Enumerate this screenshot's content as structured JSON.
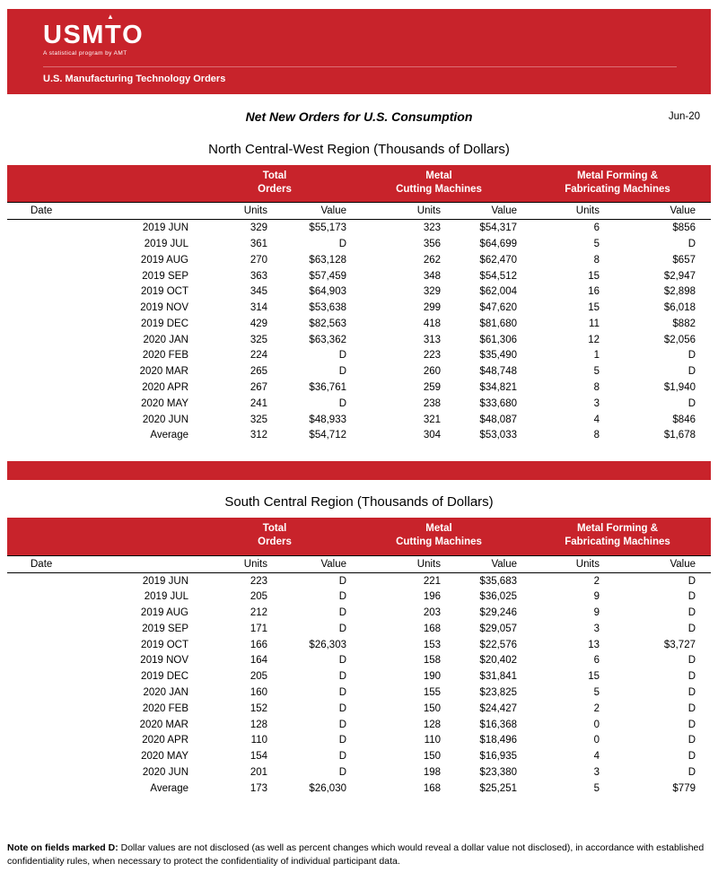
{
  "colors": {
    "brand_red": "#c8232b"
  },
  "brand": {
    "logo": "USM",
    "logo_t": "T",
    "logo_o": "O",
    "logo_arrow": "▲",
    "tagline": "A statistical program by AMT",
    "subtitle": "U.S. Manufacturing Technology Orders"
  },
  "header": {
    "title": "Net New Orders for U.S. Consumption",
    "period": "Jun-20"
  },
  "columns": {
    "date": "Date",
    "units": "Units",
    "value": "Value",
    "groups": [
      {
        "line1": "Total",
        "line2": "Orders"
      },
      {
        "line1": "Metal",
        "line2": "Cutting Machines"
      },
      {
        "line1": "Metal Forming &",
        "line2": "Fabricating Machines"
      }
    ]
  },
  "tables": [
    {
      "title": "North Central-West Region (Thousands of Dollars)",
      "rows": [
        [
          "2019 JUN",
          "329",
          "$55,173",
          "323",
          "$54,317",
          "6",
          "$856"
        ],
        [
          "2019 JUL",
          "361",
          "D",
          "356",
          "$64,699",
          "5",
          "D"
        ],
        [
          "2019 AUG",
          "270",
          "$63,128",
          "262",
          "$62,470",
          "8",
          "$657"
        ],
        [
          "2019 SEP",
          "363",
          "$57,459",
          "348",
          "$54,512",
          "15",
          "$2,947"
        ],
        [
          "2019 OCT",
          "345",
          "$64,903",
          "329",
          "$62,004",
          "16",
          "$2,898"
        ],
        [
          "2019 NOV",
          "314",
          "$53,638",
          "299",
          "$47,620",
          "15",
          "$6,018"
        ],
        [
          "2019 DEC",
          "429",
          "$82,563",
          "418",
          "$81,680",
          "11",
          "$882"
        ],
        [
          "2020 JAN",
          "325",
          "$63,362",
          "313",
          "$61,306",
          "12",
          "$2,056"
        ],
        [
          "2020 FEB",
          "224",
          "D",
          "223",
          "$35,490",
          "1",
          "D"
        ],
        [
          "2020 MAR",
          "265",
          "D",
          "260",
          "$48,748",
          "5",
          "D"
        ],
        [
          "2020 APR",
          "267",
          "$36,761",
          "259",
          "$34,821",
          "8",
          "$1,940"
        ],
        [
          "2020 MAY",
          "241",
          "D",
          "238",
          "$33,680",
          "3",
          "D"
        ],
        [
          "2020 JUN",
          "325",
          "$48,933",
          "321",
          "$48,087",
          "4",
          "$846"
        ],
        [
          "Average",
          "312",
          "$54,712",
          "304",
          "$53,033",
          "8",
          "$1,678"
        ]
      ]
    },
    {
      "title": "South Central Region (Thousands of Dollars)",
      "rows": [
        [
          "2019 JUN",
          "223",
          "D",
          "221",
          "$35,683",
          "2",
          "D"
        ],
        [
          "2019 JUL",
          "205",
          "D",
          "196",
          "$36,025",
          "9",
          "D"
        ],
        [
          "2019 AUG",
          "212",
          "D",
          "203",
          "$29,246",
          "9",
          "D"
        ],
        [
          "2019 SEP",
          "171",
          "D",
          "168",
          "$29,057",
          "3",
          "D"
        ],
        [
          "2019 OCT",
          "166",
          "$26,303",
          "153",
          "$22,576",
          "13",
          "$3,727"
        ],
        [
          "2019 NOV",
          "164",
          "D",
          "158",
          "$20,402",
          "6",
          "D"
        ],
        [
          "2019 DEC",
          "205",
          "D",
          "190",
          "$31,841",
          "15",
          "D"
        ],
        [
          "2020 JAN",
          "160",
          "D",
          "155",
          "$23,825",
          "5",
          "D"
        ],
        [
          "2020 FEB",
          "152",
          "D",
          "150",
          "$24,427",
          "2",
          "D"
        ],
        [
          "2020 MAR",
          "128",
          "D",
          "128",
          "$16,368",
          "0",
          "D"
        ],
        [
          "2020 APR",
          "110",
          "D",
          "110",
          "$18,496",
          "0",
          "D"
        ],
        [
          "2020 MAY",
          "154",
          "D",
          "150",
          "$16,935",
          "4",
          "D"
        ],
        [
          "2020 JUN",
          "201",
          "D",
          "198",
          "$23,380",
          "3",
          "D"
        ],
        [
          "Average",
          "173",
          "$26,030",
          "168",
          "$25,251",
          "5",
          "$779"
        ]
      ]
    }
  ],
  "footnote": {
    "label": "Note on fields marked D:",
    "text": " Dollar values are not disclosed (as well as percent changes which would reveal a dollar value not disclosed), in accordance with established confidentiality rules, when necessary to protect the confidentiality of individual participant data."
  }
}
